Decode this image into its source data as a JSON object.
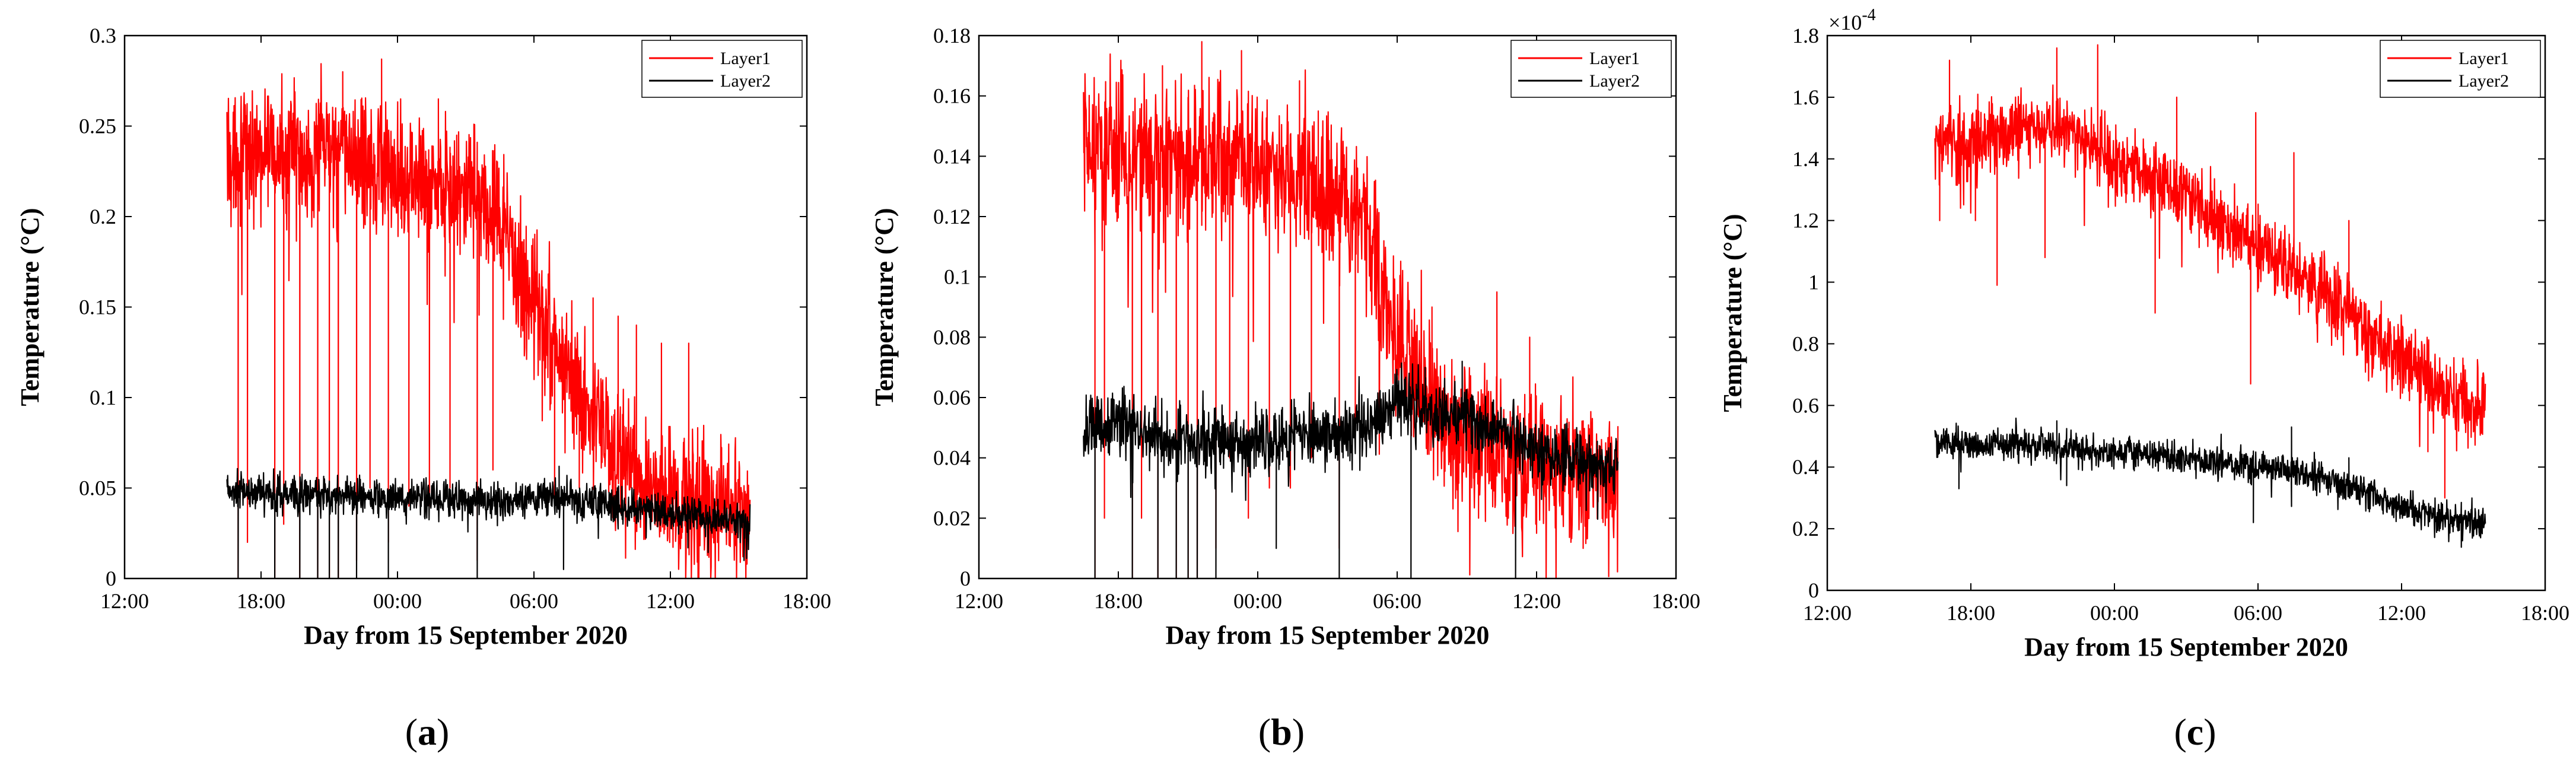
{
  "chart_data": [
    {
      "type": "line",
      "panel": "(a)",
      "panel_letter": "a",
      "xlabel": "Day from 15 September 2020",
      "ylabel": "Temperature (°C)",
      "x_ticks": [
        "12:00",
        "18:00",
        "00:00",
        "06:00",
        "12:00",
        "18:00"
      ],
      "xlim_hours": [
        12,
        42
      ],
      "ylim": [
        0,
        0.3
      ],
      "y_ticks": [
        0,
        0.05,
        0.1,
        0.15,
        0.2,
        0.25,
        0.3
      ],
      "y_tick_labels": [
        "0",
        "0.05",
        "0.1",
        "0.15",
        "0.2",
        "0.25",
        "0.3"
      ],
      "exponent": "",
      "legend_position": "top-right",
      "series": [
        {
          "name": "Layer1",
          "color": "#ff0000",
          "x_hours": [
            16.5,
            18,
            20,
            22,
            24,
            26,
            27.5,
            28.5,
            29.5,
            30.5,
            31.5,
            32.5,
            33.5,
            34.5,
            35.5,
            36.5,
            37.5,
            38.5,
            39.5
          ],
          "values": [
            0.235,
            0.235,
            0.235,
            0.235,
            0.225,
            0.215,
            0.21,
            0.195,
            0.165,
            0.14,
            0.115,
            0.09,
            0.07,
            0.055,
            0.05,
            0.045,
            0.04,
            0.038,
            0.035
          ],
          "noise": 0.018,
          "dropouts": [
            [
              17.0,
              0.0
            ],
            [
              17.4,
              0.02
            ],
            [
              18.6,
              0.0
            ],
            [
              19.0,
              0.03
            ],
            [
              19.7,
              0.0
            ],
            [
              20.5,
              0.0
            ],
            [
              21.0,
              0.0
            ],
            [
              21.4,
              0.0
            ],
            [
              22.2,
              0.01
            ],
            [
              22.8,
              0.05
            ],
            [
              23.6,
              0.02
            ],
            [
              24.5,
              0.04
            ],
            [
              25.4,
              0.04
            ],
            [
              26.3,
              0.05
            ],
            [
              27.5,
              0.01
            ],
            [
              28.2,
              0.06
            ],
            [
              30.9,
              0.04
            ],
            [
              32.0,
              0.05
            ]
          ],
          "spikes": [
            [
              21.6,
              0.28
            ],
            [
              23.3,
              0.287
            ],
            [
              25.8,
              0.265
            ],
            [
              26.6,
              0.245
            ],
            [
              32.6,
              0.155
            ],
            [
              33.7,
              0.145
            ],
            [
              34.5,
              0.14
            ],
            [
              35.6,
              0.13
            ],
            [
              36.8,
              0.13
            ]
          ]
        },
        {
          "name": "Layer2",
          "color": "#000000",
          "x_hours": [
            16.5,
            20,
            24,
            28,
            31,
            33,
            36,
            39.5
          ],
          "values": [
            0.048,
            0.046,
            0.045,
            0.043,
            0.045,
            0.042,
            0.036,
            0.032
          ],
          "noise": 0.005,
          "dropouts": [
            [
              17.0,
              0.0
            ],
            [
              18.6,
              0.0
            ],
            [
              19.7,
              0.0
            ],
            [
              20.5,
              0.0
            ],
            [
              21.0,
              0.0
            ],
            [
              21.4,
              0.0
            ],
            [
              22.2,
              0.0
            ],
            [
              23.6,
              0.0
            ],
            [
              27.5,
              0.0
            ],
            [
              31.3,
              0.005
            ]
          ],
          "spikes": [
            [
              31.1,
              0.062
            ]
          ]
        }
      ]
    },
    {
      "type": "line",
      "panel": "(b)",
      "panel_letter": "b",
      "xlabel": "Day from 15 September 2020",
      "ylabel": "Temperature (°C)",
      "x_ticks": [
        "12:00",
        "18:00",
        "00:00",
        "06:00",
        "12:00",
        "18:00"
      ],
      "xlim_hours": [
        12,
        42
      ],
      "ylim": [
        0,
        0.18
      ],
      "y_ticks": [
        0,
        0.02,
        0.04,
        0.06,
        0.08,
        0.1,
        0.12,
        0.14,
        0.16,
        0.18
      ],
      "y_tick_labels": [
        "0",
        "0.02",
        "0.04",
        "0.06",
        "0.08",
        "0.1",
        "0.12",
        "0.14",
        "0.16",
        "0.18"
      ],
      "exponent": "",
      "legend_position": "top-right",
      "series": [
        {
          "name": "Layer1",
          "color": "#ff0000",
          "x_hours": [
            16.5,
            18,
            20,
            22,
            24,
            26,
            27.5,
            28.5,
            29.5,
            30.5,
            31.5,
            32.5,
            33.5,
            34.5,
            35.5,
            36.5,
            37.5,
            38.5,
            39.5
          ],
          "values": [
            0.14,
            0.142,
            0.14,
            0.138,
            0.135,
            0.13,
            0.128,
            0.12,
            0.09,
            0.07,
            0.055,
            0.048,
            0.045,
            0.042,
            0.04,
            0.038,
            0.036,
            0.034,
            0.032
          ],
          "noise": 0.012,
          "dropouts": [
            [
              17.0,
              0.0
            ],
            [
              17.4,
              0.02
            ],
            [
              18.6,
              0.0
            ],
            [
              19.0,
              0.02
            ],
            [
              19.7,
              0.0
            ],
            [
              20.5,
              0.0
            ],
            [
              21.0,
              0.0
            ],
            [
              21.4,
              0.0
            ],
            [
              22.2,
              0.01
            ],
            [
              22.8,
              0.04
            ],
            [
              23.6,
              0.02
            ],
            [
              24.5,
              0.03
            ],
            [
              25.4,
              0.03
            ],
            [
              26.3,
              0.04
            ],
            [
              27.5,
              0.01
            ],
            [
              28.2,
              0.05
            ],
            [
              33.5,
              0.02
            ],
            [
              36.0,
              0.015
            ],
            [
              38.0,
              0.01
            ]
          ],
          "spikes": [
            [
              19.9,
              0.17
            ],
            [
              21.6,
              0.178
            ],
            [
              23.3,
              0.175
            ],
            [
              25.8,
              0.165
            ],
            [
              26.6,
              0.155
            ],
            [
              31.5,
              0.09
            ],
            [
              34.3,
              0.095
            ],
            [
              35.7,
              0.08
            ]
          ]
        },
        {
          "name": "Layer2",
          "color": "#000000",
          "x_hours": [
            16.5,
            18,
            20,
            24,
            28,
            29,
            30,
            32,
            34,
            36,
            39.5
          ],
          "values": [
            0.048,
            0.052,
            0.046,
            0.046,
            0.048,
            0.05,
            0.06,
            0.055,
            0.05,
            0.042,
            0.036
          ],
          "noise": 0.005,
          "dropouts": [
            [
              17.0,
              0.0
            ],
            [
              18.6,
              0.0
            ],
            [
              19.7,
              0.0
            ],
            [
              20.5,
              0.0
            ],
            [
              21.0,
              0.0
            ],
            [
              21.4,
              0.0
            ],
            [
              22.2,
              0.0
            ],
            [
              24.8,
              0.01
            ],
            [
              27.5,
              0.0
            ],
            [
              30.6,
              0.0
            ],
            [
              35.1,
              0.0
            ]
          ],
          "spikes": [
            [
              31.2,
              0.07
            ],
            [
              32.8,
              0.072
            ]
          ]
        }
      ]
    },
    {
      "type": "line",
      "panel": "(c)",
      "panel_letter": "c",
      "xlabel": "Day from 15 September 2020",
      "ylabel": "Temperature (°C)",
      "x_ticks": [
        "12:00",
        "18:00",
        "00:00",
        "06:00",
        "12:00",
        "18:00"
      ],
      "xlim_hours": [
        12,
        42
      ],
      "ylim": [
        0,
        1.8
      ],
      "y_ticks": [
        0,
        0.2,
        0.4,
        0.6,
        0.8,
        1,
        1.2,
        1.4,
        1.6,
        1.8
      ],
      "y_tick_labels": [
        "0",
        "0.2",
        "0.4",
        "0.6",
        "0.8",
        "1",
        "1.2",
        "1.4",
        "1.6",
        "1.8"
      ],
      "exponent": "×10",
      "exponent_power": "-4",
      "legend_position": "top-right",
      "series": [
        {
          "name": "Layer1",
          "color": "#ff0000",
          "x_hours": [
            16.5,
            18,
            20,
            22,
            24,
            26,
            28,
            30,
            32,
            34,
            36,
            37,
            38,
            39,
            39.5
          ],
          "values": [
            1.45,
            1.45,
            1.5,
            1.5,
            1.4,
            1.32,
            1.22,
            1.12,
            1.02,
            0.88,
            0.75,
            0.7,
            0.62,
            0.6,
            0.6
          ],
          "noise": 0.06,
          "dropouts": [
            [
              16.7,
              1.2
            ],
            [
              18.2,
              1.2
            ],
            [
              19.1,
              0.99
            ],
            [
              21.1,
              1.08
            ],
            [
              25.7,
              0.9
            ],
            [
              29.7,
              0.67
            ],
            [
              37.8,
              0.3
            ],
            [
              37.1,
              0.45
            ],
            [
              39.6,
              0.42
            ]
          ],
          "spikes": [
            [
              17.1,
              1.72
            ],
            [
              21.6,
              1.76
            ],
            [
              23.3,
              1.77
            ],
            [
              26.6,
              1.6
            ],
            [
              29.9,
              1.55
            ],
            [
              31.5,
              1.42
            ],
            [
              33.8,
              1.2
            ]
          ]
        },
        {
          "name": "Layer2",
          "color": "#000000",
          "x_hours": [
            16.5,
            20,
            24,
            28,
            32,
            34,
            36,
            37.5,
            39.5
          ],
          "values": [
            0.48,
            0.47,
            0.45,
            0.42,
            0.38,
            0.33,
            0.27,
            0.24,
            0.22
          ],
          "noise": 0.025,
          "dropouts": [
            [
              17.5,
              0.33
            ],
            [
              22.0,
              0.34
            ],
            [
              29.8,
              0.22
            ],
            [
              38.5,
              0.14
            ],
            [
              39.6,
              0.18
            ]
          ],
          "spikes": [
            [
              21.6,
              0.55
            ],
            [
              31.4,
              0.53
            ],
            [
              33.8,
              0.43
            ]
          ]
        }
      ]
    }
  ]
}
